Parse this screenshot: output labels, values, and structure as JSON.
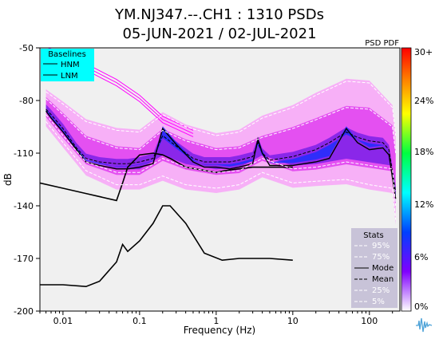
{
  "title_line1": "YM.NJ347.--.CH1 : 1310 PSDs",
  "title_line2": "05-JUN-2021 / 02-JUL-2021",
  "pdf_label": "PSD PDF",
  "baselines": {
    "title": "Baselines",
    "hnm": "HNM",
    "lnm": "LNM"
  },
  "stats": {
    "title": "Stats",
    "items": [
      "95%",
      "75%",
      "Mode",
      "Mean",
      "25%",
      "5%"
    ]
  },
  "colorbar": {
    "labels": [
      "30+",
      "24%",
      "18%",
      "12%",
      "6%",
      "0%"
    ]
  },
  "colors": {
    "hnm": "#ff00ff",
    "cyan": "#00ffff",
    "stats_bg": "#c8c3d8",
    "background": "#f0f0f0"
  },
  "chart_data": {
    "type": "heatmap",
    "xlabel": "Frequency (Hz)",
    "ylabel": "dB",
    "xscale": "log",
    "xlim": [
      0.005,
      250
    ],
    "ylim": [
      -200,
      -50
    ],
    "xticks": [
      0.01,
      0.1,
      1,
      10,
      100
    ],
    "xtick_labels": [
      "0.01",
      "0.1",
      "1",
      "10",
      "100"
    ],
    "yticks": [
      -50,
      -80,
      -110,
      -140,
      -170,
      -200
    ],
    "ytick_labels": [
      "-50",
      "-80",
      "-110",
      "-140",
      "-170",
      "-200"
    ],
    "series": [
      {
        "name": "HNM",
        "x": [
          0.0055,
          0.01,
          0.02,
          0.05,
          0.1,
          0.2,
          0.5
        ],
        "y": [
          -49,
          -53,
          -59,
          -68,
          -77,
          -89,
          -97
        ]
      },
      {
        "name": "LNM",
        "x": [
          0.005,
          0.01,
          0.02,
          0.05,
          0.06,
          0.07,
          0.1,
          0.15,
          0.2,
          0.25,
          0.4,
          1,
          1.3,
          3,
          10
        ],
        "y": [
          -127,
          -130,
          -133,
          -137,
          -127,
          -118,
          -111,
          -110,
          -111,
          -113,
          -118,
          -121,
          -120,
          -118,
          -118
        ]
      },
      {
        "name": "LNM (high-frequency)",
        "x": [
          0.005,
          0.01,
          0.02,
          0.03,
          0.05,
          0.06,
          0.07,
          0.1,
          0.15,
          0.2,
          0.25,
          0.4,
          0.7,
          1.2,
          2,
          5,
          10
        ],
        "y": [
          -185,
          -185,
          -186,
          -183,
          -172,
          -162,
          -166,
          -160,
          -150,
          -140,
          -140,
          -150,
          -167,
          -171,
          -170,
          -170,
          -171
        ]
      },
      {
        "name": "Mode",
        "x": [
          0.006,
          0.007,
          0.01,
          0.015,
          0.02,
          0.03,
          0.05,
          0.07,
          0.1,
          0.15,
          0.2,
          0.3,
          0.5,
          0.7,
          1,
          1.5,
          2,
          3,
          3.5,
          4,
          5,
          10,
          20,
          30,
          50,
          70,
          100,
          150,
          180,
          220
        ],
        "y": [
          -86,
          -90,
          -98,
          -108,
          -115,
          -117,
          -119,
          -119,
          -118,
          -116,
          -96,
          -105,
          -115,
          -118,
          -118,
          -119,
          -118,
          -116,
          -102,
          -110,
          -117,
          -117,
          -115,
          -113,
          -96,
          -104,
          -108,
          -107,
          -111,
          -136
        ]
      },
      {
        "name": "Mean",
        "x": [
          0.006,
          0.007,
          0.01,
          0.015,
          0.02,
          0.03,
          0.05,
          0.07,
          0.1,
          0.15,
          0.2,
          0.3,
          0.5,
          0.7,
          1,
          1.5,
          2,
          3,
          3.5,
          4,
          5,
          10,
          20,
          30,
          50,
          70,
          100,
          150,
          180,
          220
        ],
        "y": [
          -85,
          -88,
          -96,
          -107,
          -113,
          -115,
          -116,
          -116,
          -115,
          -113,
          -100,
          -106,
          -113,
          -115,
          -115,
          -115,
          -114,
          -112,
          -104,
          -110,
          -114,
          -112,
          -108,
          -104,
          -98,
          -101,
          -103,
          -104,
          -108,
          -132
        ]
      },
      {
        "name": "95%",
        "x": [
          0.006,
          0.01,
          0.02,
          0.05,
          0.1,
          0.2,
          0.4,
          1,
          2,
          4,
          10,
          20,
          50,
          100,
          200,
          220
        ],
        "y": [
          -75,
          -82,
          -92,
          -97,
          -98,
          -88,
          -95,
          -100,
          -98,
          -90,
          -84,
          -77,
          -69,
          -70,
          -84,
          -100
        ]
      },
      {
        "name": "75%",
        "x": [
          0.006,
          0.01,
          0.02,
          0.05,
          0.1,
          0.2,
          0.4,
          1,
          2,
          4,
          10,
          20,
          50,
          100,
          200,
          220
        ],
        "y": [
          -79,
          -88,
          -101,
          -107,
          -108,
          -97,
          -103,
          -108,
          -107,
          -101,
          -96,
          -91,
          -84,
          -85,
          -95,
          -110
        ]
      },
      {
        "name": "25%",
        "x": [
          0.006,
          0.01,
          0.02,
          0.05,
          0.1,
          0.2,
          0.4,
          1,
          2,
          4,
          10,
          20,
          50,
          100,
          200,
          220
        ],
        "y": [
          -88,
          -100,
          -115,
          -121,
          -121,
          -113,
          -118,
          -121,
          -120,
          -113,
          -119,
          -118,
          -115,
          -117,
          -119,
          -140
        ]
      },
      {
        "name": "5%",
        "x": [
          0.006,
          0.01,
          0.02,
          0.05,
          0.1,
          0.2,
          0.4,
          1,
          2,
          4,
          10,
          20,
          50,
          100,
          200,
          220
        ],
        "y": [
          -92,
          -104,
          -120,
          -128,
          -128,
          -123,
          -128,
          -130,
          -128,
          -121,
          -127,
          -126,
          -125,
          -128,
          -130,
          -148
        ]
      }
    ]
  }
}
